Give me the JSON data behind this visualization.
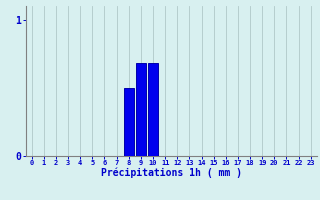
{
  "categories": [
    0,
    1,
    2,
    3,
    4,
    5,
    6,
    7,
    8,
    9,
    10,
    11,
    12,
    13,
    14,
    15,
    16,
    17,
    18,
    19,
    20,
    21,
    22,
    23
  ],
  "values": [
    0,
    0,
    0,
    0,
    0,
    0,
    0,
    0,
    0.5,
    0.68,
    0.68,
    0,
    0,
    0,
    0,
    0,
    0,
    0,
    0,
    0,
    0,
    0,
    0,
    0
  ],
  "bar_color": "#0000ee",
  "bar_edge_color": "#0000aa",
  "background_color": "#d8f0f0",
  "grid_color": "#b0c8c8",
  "xlabel": "Précipitations 1h ( mm )",
  "xlabel_color": "#0000cc",
  "tick_color": "#0000cc",
  "axis_color": "#808080",
  "ylim": [
    0,
    1.1
  ],
  "xlim": [
    -0.5,
    23.5
  ],
  "yticks": [
    0,
    1
  ],
  "xticks": [
    0,
    1,
    2,
    3,
    4,
    5,
    6,
    7,
    8,
    9,
    10,
    11,
    12,
    13,
    14,
    15,
    16,
    17,
    18,
    19,
    20,
    21,
    22,
    23
  ]
}
